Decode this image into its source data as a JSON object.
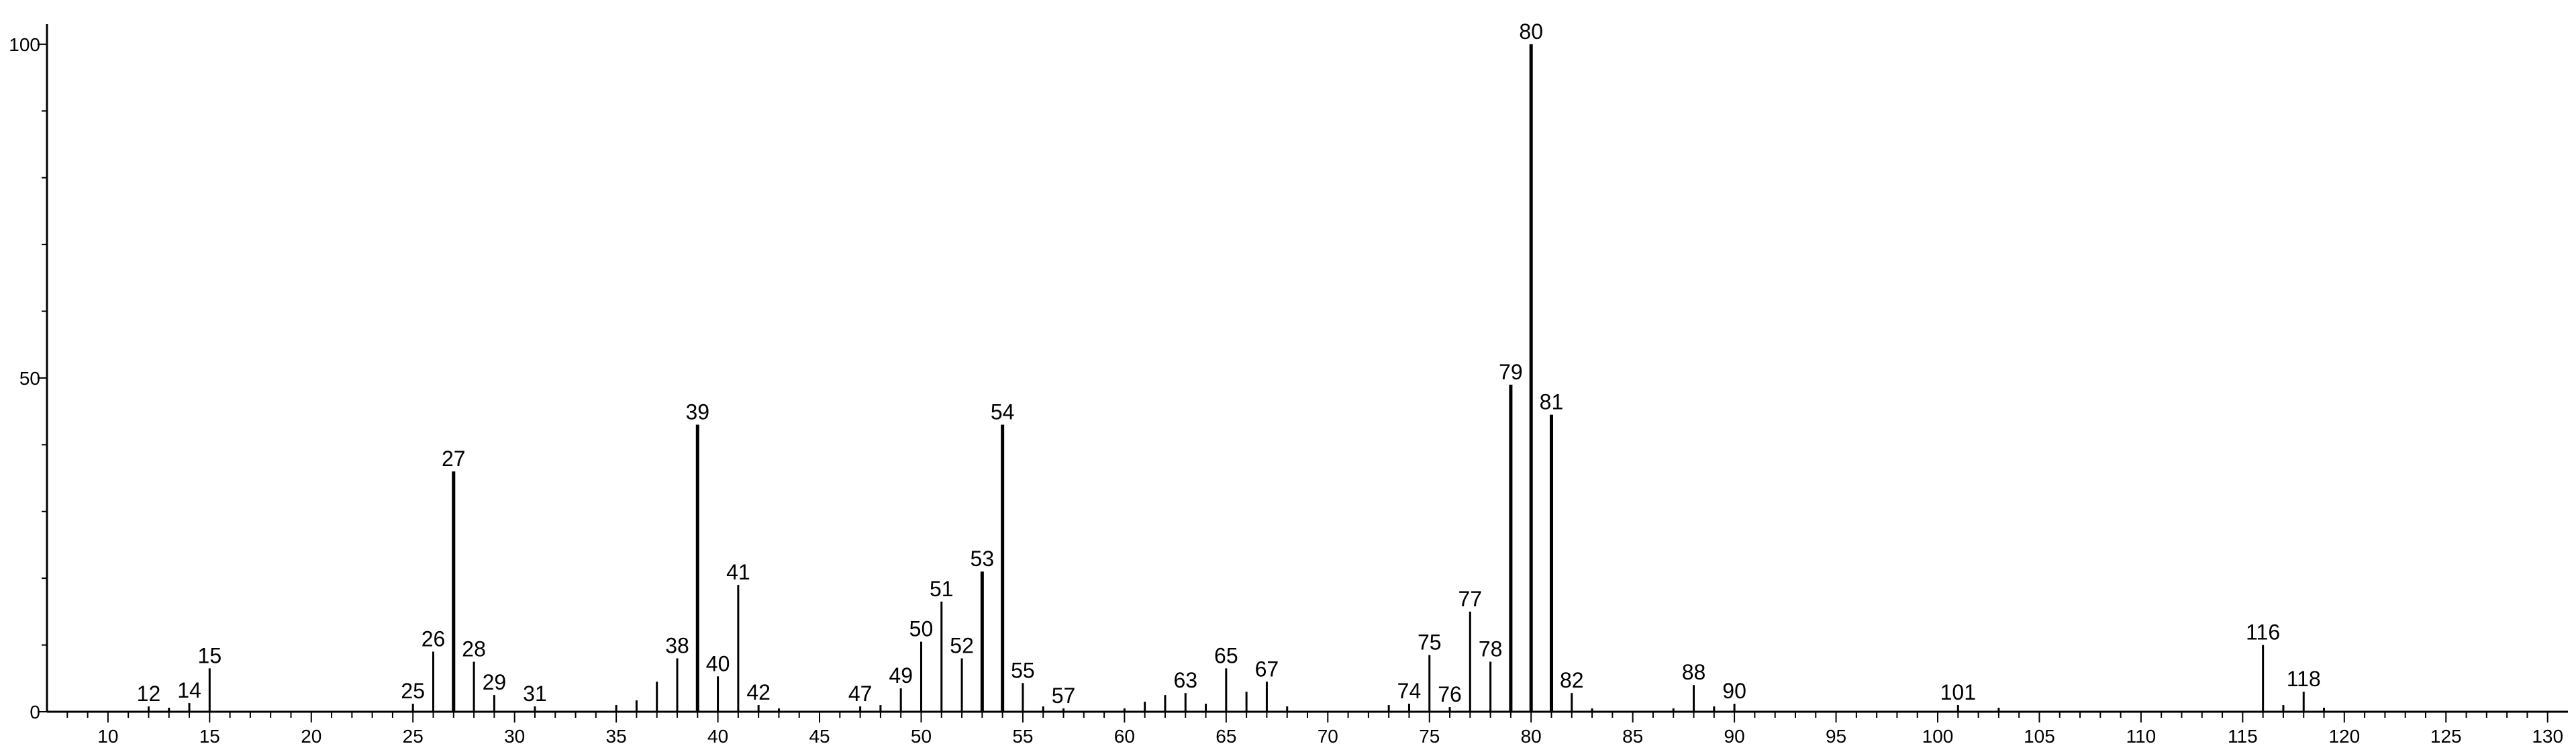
{
  "chart_data": {
    "type": "bar",
    "title": "",
    "xlabel": "",
    "ylabel": "",
    "xlim": [
      7,
      131
    ],
    "ylim": [
      0,
      102
    ],
    "grid": false,
    "x_ticks": [
      10,
      15,
      20,
      25,
      30,
      35,
      40,
      45,
      50,
      55,
      60,
      65,
      70,
      75,
      80,
      85,
      90,
      95,
      100,
      105,
      110,
      115,
      120,
      125,
      130
    ],
    "y_ticks": [
      0,
      50,
      100
    ],
    "bar_color": "#000000",
    "peaks": [
      {
        "x": 12,
        "y": 0.8,
        "label": "12"
      },
      {
        "x": 13,
        "y": 0.6,
        "label": ""
      },
      {
        "x": 14,
        "y": 1.3,
        "label": "14"
      },
      {
        "x": 15,
        "y": 6.5,
        "label": "15"
      },
      {
        "x": 25,
        "y": 1.2,
        "label": "25"
      },
      {
        "x": 26,
        "y": 9,
        "label": "26"
      },
      {
        "x": 27,
        "y": 36,
        "label": "27"
      },
      {
        "x": 28,
        "y": 7.5,
        "label": "28"
      },
      {
        "x": 29,
        "y": 2.5,
        "label": "29"
      },
      {
        "x": 31,
        "y": 0.8,
        "label": "31"
      },
      {
        "x": 35,
        "y": 1,
        "label": ""
      },
      {
        "x": 36,
        "y": 1.7,
        "label": ""
      },
      {
        "x": 37,
        "y": 4.5,
        "label": ""
      },
      {
        "x": 38,
        "y": 8,
        "label": "38"
      },
      {
        "x": 39,
        "y": 43,
        "label": "39"
      },
      {
        "x": 40,
        "y": 5.3,
        "label": "40"
      },
      {
        "x": 41,
        "y": 19,
        "label": "41"
      },
      {
        "x": 42,
        "y": 1,
        "label": "42"
      },
      {
        "x": 43,
        "y": 0.5,
        "label": ""
      },
      {
        "x": 47,
        "y": 0.8,
        "label": "47"
      },
      {
        "x": 48,
        "y": 1,
        "label": ""
      },
      {
        "x": 49,
        "y": 3.5,
        "label": "49"
      },
      {
        "x": 50,
        "y": 10.5,
        "label": "50"
      },
      {
        "x": 51,
        "y": 16.5,
        "label": "51"
      },
      {
        "x": 52,
        "y": 8,
        "label": "52"
      },
      {
        "x": 53,
        "y": 21,
        "label": "53"
      },
      {
        "x": 54,
        "y": 43,
        "label": "54"
      },
      {
        "x": 55,
        "y": 4.3,
        "label": "55"
      },
      {
        "x": 56,
        "y": 0.8,
        "label": ""
      },
      {
        "x": 57,
        "y": 0.5,
        "label": "57"
      },
      {
        "x": 60,
        "y": 0.5,
        "label": ""
      },
      {
        "x": 61,
        "y": 1.5,
        "label": ""
      },
      {
        "x": 62,
        "y": 2.5,
        "label": ""
      },
      {
        "x": 63,
        "y": 2.8,
        "label": "63"
      },
      {
        "x": 64,
        "y": 1.2,
        "label": ""
      },
      {
        "x": 65,
        "y": 6.5,
        "label": "65"
      },
      {
        "x": 66,
        "y": 3,
        "label": ""
      },
      {
        "x": 67,
        "y": 4.5,
        "label": "67"
      },
      {
        "x": 68,
        "y": 0.8,
        "label": ""
      },
      {
        "x": 73,
        "y": 1,
        "label": ""
      },
      {
        "x": 74,
        "y": 1.2,
        "label": "74"
      },
      {
        "x": 75,
        "y": 8.5,
        "label": "75"
      },
      {
        "x": 76,
        "y": 0.7,
        "label": "76"
      },
      {
        "x": 77,
        "y": 15,
        "label": "77"
      },
      {
        "x": 78,
        "y": 7.5,
        "label": "78"
      },
      {
        "x": 79,
        "y": 49,
        "label": "79"
      },
      {
        "x": 80,
        "y": 100,
        "label": "80"
      },
      {
        "x": 81,
        "y": 44.5,
        "label": "81"
      },
      {
        "x": 82,
        "y": 2.8,
        "label": "82"
      },
      {
        "x": 83,
        "y": 0.5,
        "label": ""
      },
      {
        "x": 87,
        "y": 0.5,
        "label": ""
      },
      {
        "x": 88,
        "y": 4,
        "label": "88"
      },
      {
        "x": 89,
        "y": 0.8,
        "label": ""
      },
      {
        "x": 90,
        "y": 1.2,
        "label": "90"
      },
      {
        "x": 101,
        "y": 1,
        "label": "101"
      },
      {
        "x": 103,
        "y": 0.6,
        "label": ""
      },
      {
        "x": 116,
        "y": 10,
        "label": "116"
      },
      {
        "x": 117,
        "y": 1,
        "label": ""
      },
      {
        "x": 118,
        "y": 3,
        "label": "118"
      },
      {
        "x": 119,
        "y": 0.6,
        "label": ""
      }
    ]
  }
}
